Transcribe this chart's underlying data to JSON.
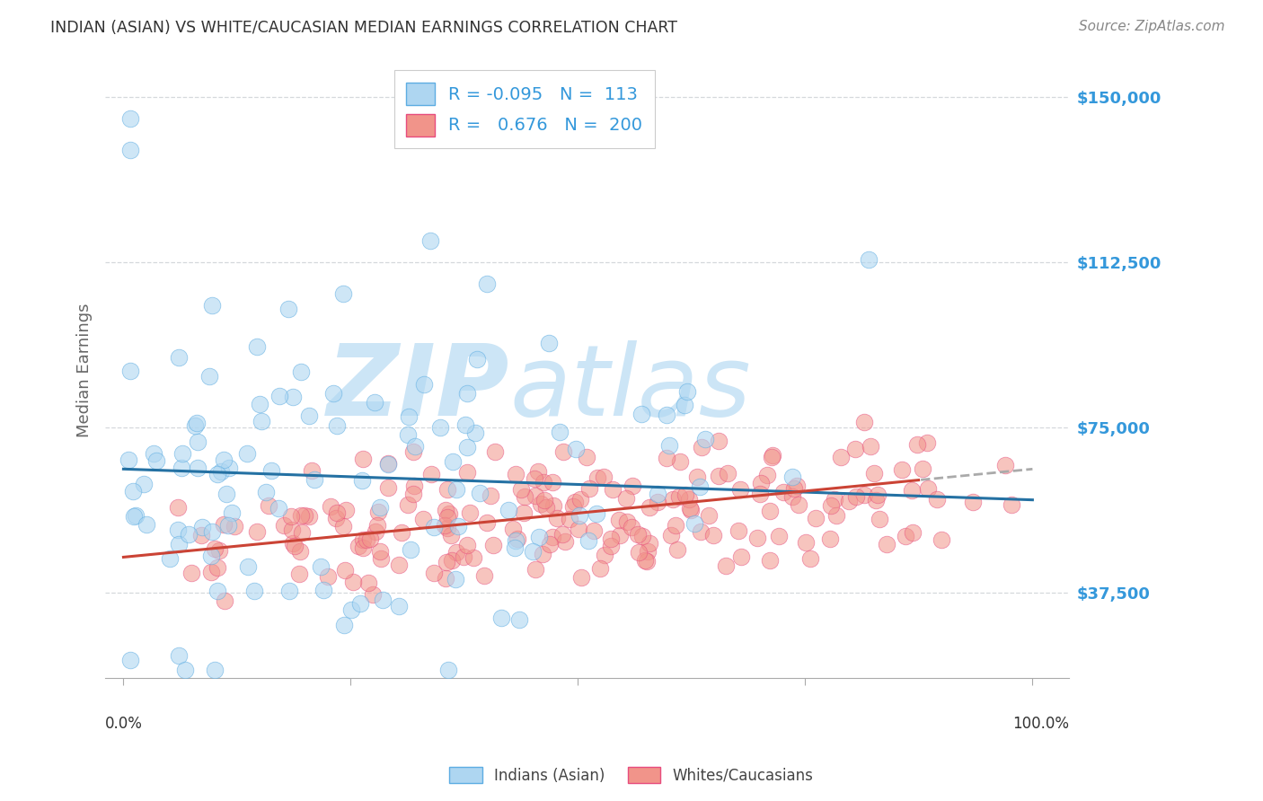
{
  "title": "INDIAN (ASIAN) VS WHITE/CAUCASIAN MEDIAN EARNINGS CORRELATION CHART",
  "source": "Source: ZipAtlas.com",
  "ylabel": "Median Earnings",
  "ytick_labels": [
    "$37,500",
    "$75,000",
    "$112,500",
    "$150,000"
  ],
  "ytick_values": [
    37500,
    75000,
    112500,
    150000
  ],
  "ymin": 18000,
  "ymax": 158000,
  "xmin": 0.0,
  "xmax": 1.0,
  "legend_blue_R": "-0.095",
  "legend_blue_N": "113",
  "legend_pink_R": "0.676",
  "legend_pink_N": "200",
  "blue_fill": "#aed6f1",
  "blue_edge": "#5dade2",
  "pink_fill": "#f1948a",
  "pink_edge": "#e74c7e",
  "blue_line_color": "#2471a3",
  "pink_line_color": "#cb4335",
  "watermark_color": "#d6eaf8",
  "title_color": "#333333",
  "axis_label_color": "#666666",
  "ytick_color": "#3498db",
  "grid_color": "#d5d8dc",
  "blue_scatter_seed": 7,
  "pink_scatter_seed": 13
}
